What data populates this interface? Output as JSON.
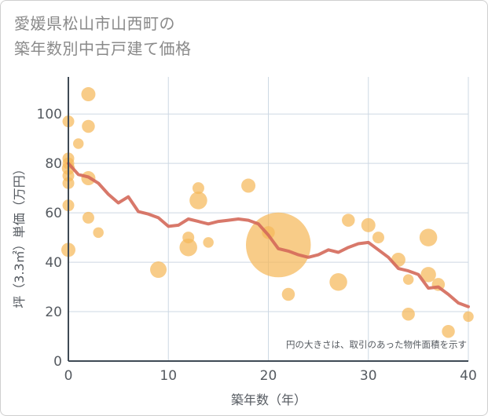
{
  "title_lines": [
    "愛媛県松山市山西町の",
    "築年数別中古戸建て価格"
  ],
  "chart_data": {
    "type": "scatter",
    "title": "愛媛県松山市山西町の築年数別中古戸建て価格",
    "xlabel": "築年数（年）",
    "ylabel": "坪（3.3㎡）単価（万円）",
    "xlim": [
      0,
      40
    ],
    "ylim": [
      0,
      115
    ],
    "xticks": [
      0,
      10,
      20,
      30,
      40
    ],
    "yticks": [
      0,
      20,
      40,
      60,
      80,
      100
    ],
    "grid": true,
    "annotation": "円の大きさは、取引のあった物件面積を示す",
    "colors": {
      "bubble": "#f5b95a",
      "line": "#d4695a",
      "grid": "#cdd8e3",
      "axis": "#3f4a55"
    },
    "series": [
      {
        "kind": "bubble",
        "points": [
          {
            "x": 0,
            "y": 97,
            "s": 1.0
          },
          {
            "x": 0,
            "y": 82,
            "s": 1.0
          },
          {
            "x": 0,
            "y": 80,
            "s": 1.0
          },
          {
            "x": 0,
            "y": 78,
            "s": 1.1
          },
          {
            "x": 0,
            "y": 75,
            "s": 1.0
          },
          {
            "x": 0,
            "y": 72,
            "s": 1.0
          },
          {
            "x": 0,
            "y": 63,
            "s": 1.0
          },
          {
            "x": 0,
            "y": 45,
            "s": 1.2
          },
          {
            "x": 1,
            "y": 88,
            "s": 0.9
          },
          {
            "x": 2,
            "y": 108,
            "s": 1.2
          },
          {
            "x": 2,
            "y": 95,
            "s": 1.1
          },
          {
            "x": 2,
            "y": 74,
            "s": 1.2
          },
          {
            "x": 2,
            "y": 58,
            "s": 1.0
          },
          {
            "x": 3,
            "y": 52,
            "s": 0.9
          },
          {
            "x": 9,
            "y": 37,
            "s": 1.4
          },
          {
            "x": 12,
            "y": 50,
            "s": 1.0
          },
          {
            "x": 12,
            "y": 46,
            "s": 1.5
          },
          {
            "x": 13,
            "y": 70,
            "s": 1.0
          },
          {
            "x": 13,
            "y": 65,
            "s": 1.5
          },
          {
            "x": 14,
            "y": 48,
            "s": 0.9
          },
          {
            "x": 18,
            "y": 71,
            "s": 1.2
          },
          {
            "x": 20,
            "y": 52,
            "s": 1.1
          },
          {
            "x": 21,
            "y": 47,
            "s": 5.5
          },
          {
            "x": 22,
            "y": 27,
            "s": 1.1
          },
          {
            "x": 27,
            "y": 32,
            "s": 1.5
          },
          {
            "x": 28,
            "y": 57,
            "s": 1.1
          },
          {
            "x": 30,
            "y": 55,
            "s": 1.2
          },
          {
            "x": 31,
            "y": 50,
            "s": 1.0
          },
          {
            "x": 33,
            "y": 41,
            "s": 1.2
          },
          {
            "x": 34,
            "y": 33,
            "s": 0.9
          },
          {
            "x": 34,
            "y": 19,
            "s": 1.1
          },
          {
            "x": 36,
            "y": 50,
            "s": 1.5
          },
          {
            "x": 36,
            "y": 35,
            "s": 1.3
          },
          {
            "x": 37,
            "y": 31,
            "s": 1.1
          },
          {
            "x": 38,
            "y": 12,
            "s": 1.1
          },
          {
            "x": 40,
            "y": 18,
            "s": 0.9
          }
        ]
      },
      {
        "kind": "line",
        "points": [
          {
            "x": 0,
            "y": 80
          },
          {
            "x": 1,
            "y": 75.5
          },
          {
            "x": 2,
            "y": 74.5
          },
          {
            "x": 3,
            "y": 72
          },
          {
            "x": 4,
            "y": 67.5
          },
          {
            "x": 5,
            "y": 64
          },
          {
            "x": 6,
            "y": 66.5
          },
          {
            "x": 7,
            "y": 60.5
          },
          {
            "x": 8,
            "y": 59.5
          },
          {
            "x": 9,
            "y": 58
          },
          {
            "x": 10,
            "y": 54.5
          },
          {
            "x": 11,
            "y": 55
          },
          {
            "x": 12,
            "y": 57.5
          },
          {
            "x": 13,
            "y": 56.5
          },
          {
            "x": 14,
            "y": 55.5
          },
          {
            "x": 15,
            "y": 56.5
          },
          {
            "x": 16,
            "y": 57
          },
          {
            "x": 17,
            "y": 57.5
          },
          {
            "x": 18,
            "y": 57
          },
          {
            "x": 19,
            "y": 55.5
          },
          {
            "x": 20,
            "y": 51
          },
          {
            "x": 21,
            "y": 45.5
          },
          {
            "x": 22,
            "y": 44.5
          },
          {
            "x": 23,
            "y": 43
          },
          {
            "x": 24,
            "y": 42
          },
          {
            "x": 25,
            "y": 43
          },
          {
            "x": 26,
            "y": 45
          },
          {
            "x": 27,
            "y": 44
          },
          {
            "x": 28,
            "y": 46
          },
          {
            "x": 29,
            "y": 47.5
          },
          {
            "x": 30,
            "y": 48
          },
          {
            "x": 31,
            "y": 45
          },
          {
            "x": 32,
            "y": 42
          },
          {
            "x": 33,
            "y": 37.5
          },
          {
            "x": 34,
            "y": 36.5
          },
          {
            "x": 35,
            "y": 35
          },
          {
            "x": 36,
            "y": 29.5
          },
          {
            "x": 37,
            "y": 30
          },
          {
            "x": 38,
            "y": 27
          },
          {
            "x": 39,
            "y": 23.5
          },
          {
            "x": 40,
            "y": 22
          }
        ]
      }
    ]
  }
}
